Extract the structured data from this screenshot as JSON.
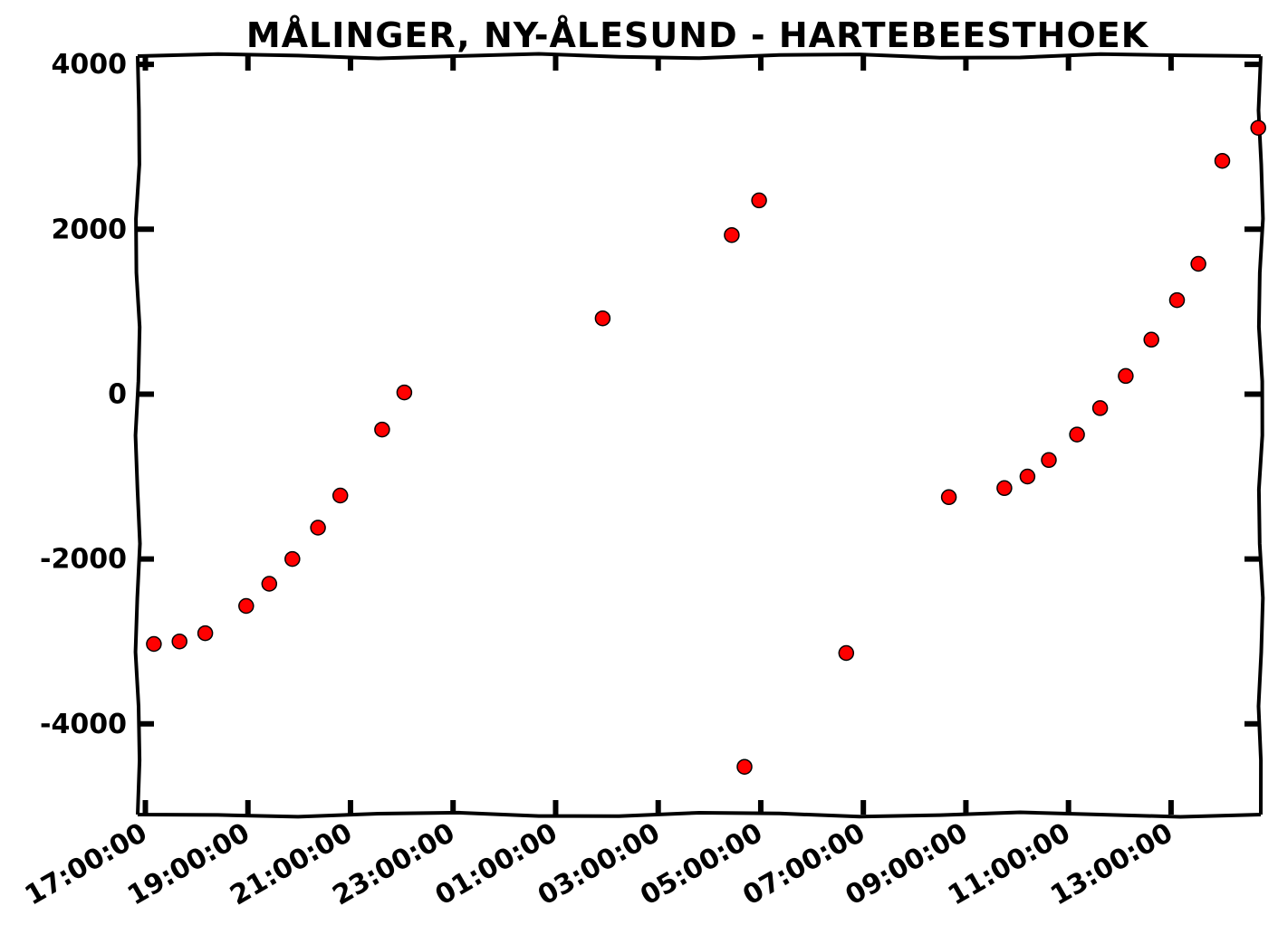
{
  "chart_data": {
    "type": "scatter",
    "title": "MÅLINGER, NY-ÅLESUND - HARTEBEESTHOEK",
    "xlabel": "",
    "ylabel": "",
    "x_unit": "hours",
    "xlim": [
      16.85,
      14.75
    ],
    "xlim_note": "time axis spans from ~16:51 to ~14:45 next day",
    "x_tick_labels": [
      "17:00:00",
      "19:00:00",
      "21:00:00",
      "23:00:00",
      "01:00:00",
      "03:00:00",
      "05:00:00",
      "07:00:00",
      "09:00:00",
      "11:00:00",
      "13:00:00"
    ],
    "ylim": [
      -5100,
      4100
    ],
    "y_ticks": [
      4000,
      2000,
      0,
      -2000,
      -4000
    ],
    "y_tick_labels": [
      "4000",
      "2000",
      "0",
      "-2000",
      "-4000"
    ],
    "grid": false,
    "legend": "none",
    "marker_color": "#ff0000",
    "marker_edge": "#000000",
    "series": [
      {
        "x": [
          "17:10",
          "17:40",
          "18:10",
          "18:58",
          "19:25",
          "19:52",
          "20:22",
          "20:48",
          "21:37",
          "22:03",
          "01:55",
          "04:26",
          "04:41",
          "04:58",
          "06:40",
          "08:40",
          "09:45",
          "10:12",
          "10:37",
          "11:10",
          "11:37",
          "12:07",
          "12:37",
          "13:07",
          "13:32",
          "14:00",
          "14:42"
        ],
        "values": [
          -3030,
          -3000,
          -2900,
          -2570,
          -2300,
          -2000,
          -1620,
          -1230,
          -430,
          20,
          920,
          1930,
          -4520,
          2350,
          -3140,
          -1250,
          -1140,
          -1000,
          -800,
          -490,
          -170,
          220,
          660,
          1140,
          1580,
          2830,
          3230
        ]
      }
    ]
  }
}
